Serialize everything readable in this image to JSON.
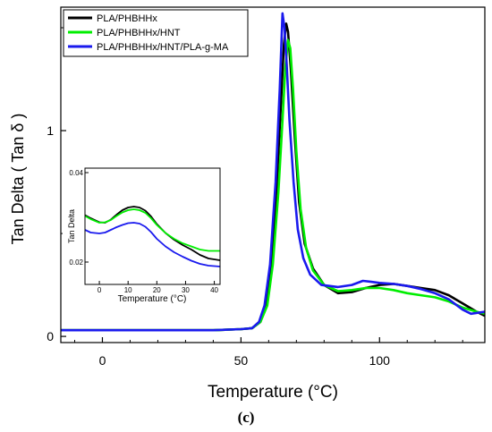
{
  "chart_data": {
    "type": "line",
    "title": "",
    "caption": "(c)",
    "xlabel": "Temperature (°C)",
    "ylabel": "Tan Delta ( Tan δ )",
    "xlim": [
      -15,
      138
    ],
    "ylim": [
      -0.03,
      1.6
    ],
    "xticks": [
      0,
      50,
      100
    ],
    "yticks": [
      0,
      1
    ],
    "legend_position": "top-left",
    "series": [
      {
        "name": "PLA/PHBHHx",
        "color": "#000000",
        "points": [
          [
            -15,
            0.03
          ],
          [
            0,
            0.03
          ],
          [
            20,
            0.03
          ],
          [
            40,
            0.03
          ],
          [
            50,
            0.035
          ],
          [
            54,
            0.04
          ],
          [
            57,
            0.07
          ],
          [
            59,
            0.15
          ],
          [
            61,
            0.35
          ],
          [
            63,
            0.75
          ],
          [
            64.5,
            1.15
          ],
          [
            65.5,
            1.42
          ],
          [
            66.3,
            1.52
          ],
          [
            67,
            1.48
          ],
          [
            68,
            1.3
          ],
          [
            69.5,
            0.95
          ],
          [
            71,
            0.65
          ],
          [
            73,
            0.45
          ],
          [
            76,
            0.33
          ],
          [
            80,
            0.25
          ],
          [
            85,
            0.21
          ],
          [
            90,
            0.215
          ],
          [
            95,
            0.235
          ],
          [
            100,
            0.25
          ],
          [
            105,
            0.255
          ],
          [
            110,
            0.245
          ],
          [
            115,
            0.235
          ],
          [
            120,
            0.225
          ],
          [
            125,
            0.2
          ],
          [
            130,
            0.16
          ],
          [
            135,
            0.12
          ],
          [
            138,
            0.1
          ]
        ]
      },
      {
        "name": "PLA/PHBHHx/HNT",
        "color": "#00ee00",
        "points": [
          [
            -15,
            0.03
          ],
          [
            0,
            0.03
          ],
          [
            20,
            0.03
          ],
          [
            40,
            0.03
          ],
          [
            50,
            0.035
          ],
          [
            54,
            0.04
          ],
          [
            57,
            0.07
          ],
          [
            59.5,
            0.15
          ],
          [
            61.5,
            0.35
          ],
          [
            63.5,
            0.7
          ],
          [
            65,
            1.05
          ],
          [
            66,
            1.3
          ],
          [
            67,
            1.44
          ],
          [
            67.8,
            1.4
          ],
          [
            68.8,
            1.2
          ],
          [
            70,
            0.9
          ],
          [
            71.5,
            0.62
          ],
          [
            73.5,
            0.43
          ],
          [
            76,
            0.32
          ],
          [
            80,
            0.25
          ],
          [
            85,
            0.22
          ],
          [
            90,
            0.225
          ],
          [
            95,
            0.235
          ],
          [
            100,
            0.235
          ],
          [
            105,
            0.225
          ],
          [
            110,
            0.21
          ],
          [
            115,
            0.2
          ],
          [
            120,
            0.19
          ],
          [
            125,
            0.17
          ],
          [
            130,
            0.14
          ],
          [
            135,
            0.12
          ],
          [
            138,
            0.11
          ]
        ]
      },
      {
        "name": "PLA/PHBHHx/HNT/PLA-g-MA",
        "color": "#1a1aee",
        "points": [
          [
            -15,
            0.03
          ],
          [
            0,
            0.03
          ],
          [
            20,
            0.03
          ],
          [
            40,
            0.03
          ],
          [
            50,
            0.035
          ],
          [
            54,
            0.04
          ],
          [
            56.5,
            0.07
          ],
          [
            58.5,
            0.15
          ],
          [
            60.5,
            0.35
          ],
          [
            62.5,
            0.75
          ],
          [
            64,
            1.2
          ],
          [
            65,
            1.57
          ],
          [
            65.7,
            1.5
          ],
          [
            66.5,
            1.32
          ],
          [
            67.5,
            1.05
          ],
          [
            69,
            0.75
          ],
          [
            70.5,
            0.52
          ],
          [
            72.5,
            0.38
          ],
          [
            75,
            0.3
          ],
          [
            79,
            0.25
          ],
          [
            85,
            0.24
          ],
          [
            90,
            0.25
          ],
          [
            94,
            0.27
          ],
          [
            97,
            0.265
          ],
          [
            100,
            0.26
          ],
          [
            105,
            0.255
          ],
          [
            110,
            0.245
          ],
          [
            115,
            0.23
          ],
          [
            120,
            0.21
          ],
          [
            125,
            0.18
          ],
          [
            130,
            0.13
          ],
          [
            133,
            0.11
          ],
          [
            138,
            0.12
          ]
        ]
      }
    ],
    "inset": {
      "xlabel": "Temperature (°C)",
      "ylabel": "Tan Delta",
      "xlim": [
        -5,
        42
      ],
      "ylim": [
        0.015,
        0.041
      ],
      "xticks": [
        0,
        10,
        20,
        30,
        40
      ],
      "yticks": [
        0.02,
        0.04
      ],
      "series": [
        {
          "name": "PLA/PHBHHx",
          "color": "#000000",
          "points": [
            [
              -5,
              0.0305
            ],
            [
              -3,
              0.0298
            ],
            [
              0,
              0.0289
            ],
            [
              2,
              0.0288
            ],
            [
              4,
              0.0295
            ],
            [
              6,
              0.0306
            ],
            [
              8,
              0.0316
            ],
            [
              10,
              0.0322
            ],
            [
              12,
              0.0324
            ],
            [
              14,
              0.0322
            ],
            [
              16,
              0.0315
            ],
            [
              18,
              0.0302
            ],
            [
              20,
              0.0285
            ],
            [
              23,
              0.0265
            ],
            [
              26,
              0.025
            ],
            [
              29,
              0.0238
            ],
            [
              32,
              0.0228
            ],
            [
              35,
              0.0216
            ],
            [
              38,
              0.0208
            ],
            [
              42,
              0.0204
            ]
          ]
        },
        {
          "name": "PLA/PHBHHx/HNT",
          "color": "#00ee00",
          "points": [
            [
              -5,
              0.0303
            ],
            [
              -3,
              0.0296
            ],
            [
              0,
              0.0288
            ],
            [
              2,
              0.0289
            ],
            [
              4,
              0.0294
            ],
            [
              6,
              0.0303
            ],
            [
              8,
              0.0311
            ],
            [
              10,
              0.0316
            ],
            [
              12,
              0.0318
            ],
            [
              14,
              0.0316
            ],
            [
              16,
              0.031
            ],
            [
              18,
              0.0298
            ],
            [
              20,
              0.0283
            ],
            [
              23,
              0.0265
            ],
            [
              26,
              0.0252
            ],
            [
              29,
              0.0242
            ],
            [
              32,
              0.0235
            ],
            [
              35,
              0.0228
            ],
            [
              38,
              0.0225
            ],
            [
              42,
              0.0225
            ]
          ]
        },
        {
          "name": "PLA/PHBHHx/HNT/PLA-g-MA",
          "color": "#1a1aee",
          "points": [
            [
              -5,
              0.0272
            ],
            [
              -3,
              0.0266
            ],
            [
              0,
              0.0264
            ],
            [
              2,
              0.0266
            ],
            [
              4,
              0.0272
            ],
            [
              6,
              0.0278
            ],
            [
              8,
              0.0283
            ],
            [
              10,
              0.0287
            ],
            [
              12,
              0.0288
            ],
            [
              14,
              0.0286
            ],
            [
              16,
              0.0279
            ],
            [
              18,
              0.0267
            ],
            [
              20,
              0.0252
            ],
            [
              23,
              0.0235
            ],
            [
              26,
              0.0222
            ],
            [
              29,
              0.0212
            ],
            [
              32,
              0.0203
            ],
            [
              35,
              0.0196
            ],
            [
              38,
              0.0192
            ],
            [
              42,
              0.019
            ]
          ]
        }
      ]
    }
  }
}
